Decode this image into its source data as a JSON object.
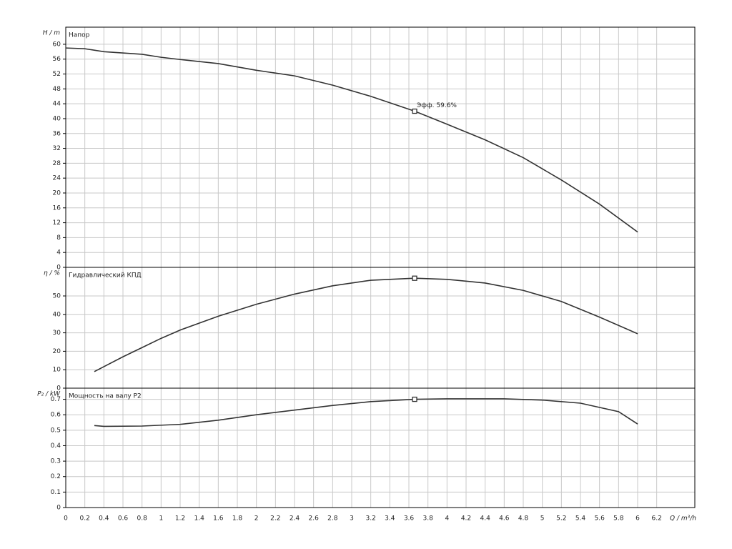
{
  "chart_data": [
    {
      "type": "line",
      "y_label": "H / m",
      "title": "Напор",
      "x": [
        0,
        0.2,
        0.4,
        0.8,
        1,
        1.2,
        1.6,
        2,
        2.4,
        2.8,
        3.2,
        3.66,
        4,
        4.4,
        4.8,
        5.2,
        5.6,
        6
      ],
      "series": [
        {
          "name": "Напор",
          "color": "#333333",
          "values": [
            59,
            58.8,
            58,
            57.3,
            56.5,
            55.9,
            54.8,
            53,
            51.5,
            49,
            46,
            42,
            38.5,
            34.3,
            29.5,
            23.5,
            17,
            9.5
          ]
        }
      ],
      "operating_point": {
        "x": 3.66,
        "y": 42,
        "label": "Эфф.  59.6%"
      },
      "xlim": [
        0,
        6.6
      ],
      "xticks": [
        0,
        0.2,
        0.4,
        0.6,
        0.8,
        1,
        1.2,
        1.4,
        1.6,
        1.8,
        2,
        2.2,
        2.4,
        2.6,
        2.8,
        3,
        3.2,
        3.4,
        3.6,
        3.8,
        4,
        4.2,
        4.4,
        4.6,
        4.8,
        5,
        5.2,
        5.4,
        5.6,
        5.8,
        6,
        6.2
      ],
      "ylim": [
        0,
        64.6
      ],
      "yticks": [
        0,
        4,
        8,
        12,
        16,
        20,
        24,
        28,
        32,
        36,
        40,
        44,
        48,
        52,
        56,
        60
      ],
      "grid": true
    },
    {
      "type": "line",
      "y_label": "η / %",
      "title": "Гидравлический КПД",
      "x": [
        0.3,
        0.6,
        0.8,
        1,
        1.2,
        1.6,
        2,
        2.4,
        2.8,
        3.2,
        3.66,
        4,
        4.4,
        4.8,
        5.2,
        5.6,
        6
      ],
      "series": [
        {
          "name": "Гидравлический КПД",
          "color": "#333333",
          "values": [
            9,
            17,
            22,
            27,
            31.5,
            39,
            45.5,
            51,
            55.5,
            58.5,
            59.6,
            59,
            57,
            53,
            47,
            38.5,
            29.5
          ]
        }
      ],
      "operating_point": {
        "x": 3.66,
        "y": 59.6
      },
      "xlim": [
        0,
        6.6
      ],
      "xticks": [
        0,
        0.2,
        0.4,
        0.6,
        0.8,
        1,
        1.2,
        1.4,
        1.6,
        1.8,
        2,
        2.2,
        2.4,
        2.6,
        2.8,
        3,
        3.2,
        3.4,
        3.6,
        3.8,
        4,
        4.2,
        4.4,
        4.6,
        4.8,
        5,
        5.2,
        5.4,
        5.6,
        5.8,
        6,
        6.2
      ],
      "ylim": [
        0,
        65.5
      ],
      "yticks": [
        0,
        10,
        20,
        30,
        40,
        50
      ],
      "grid": true
    },
    {
      "type": "line",
      "y_label": "P₂ / kW",
      "title": "Мощность на валу P2",
      "x_label": "Q / m³/h",
      "x": [
        0.3,
        0.4,
        0.8,
        1.2,
        1.6,
        2,
        2.4,
        2.8,
        3.2,
        3.66,
        4,
        4.6,
        5,
        5.4,
        5.8,
        6
      ],
      "series": [
        {
          "name": "Мощность на валу P2",
          "color": "#333333",
          "values": [
            0.53,
            0.525,
            0.527,
            0.538,
            0.565,
            0.6,
            0.63,
            0.66,
            0.685,
            0.7,
            0.703,
            0.703,
            0.695,
            0.675,
            0.62,
            0.54
          ]
        }
      ],
      "operating_point": {
        "x": 3.66,
        "y": 0.7
      },
      "xlim": [
        0,
        6.6
      ],
      "xticks": [
        0,
        0.2,
        0.4,
        0.6,
        0.8,
        1,
        1.2,
        1.4,
        1.6,
        1.8,
        2,
        2.2,
        2.4,
        2.6,
        2.8,
        3,
        3.2,
        3.4,
        3.6,
        3.8,
        4,
        4.2,
        4.4,
        4.6,
        4.8,
        5,
        5.2,
        5.4,
        5.6,
        5.8,
        6,
        6.2
      ],
      "ylim": [
        0,
        0.772
      ],
      "yticks": [
        0,
        0.1,
        0.2,
        0.3,
        0.4,
        0.5,
        0.6,
        0.7
      ],
      "grid": true
    }
  ]
}
